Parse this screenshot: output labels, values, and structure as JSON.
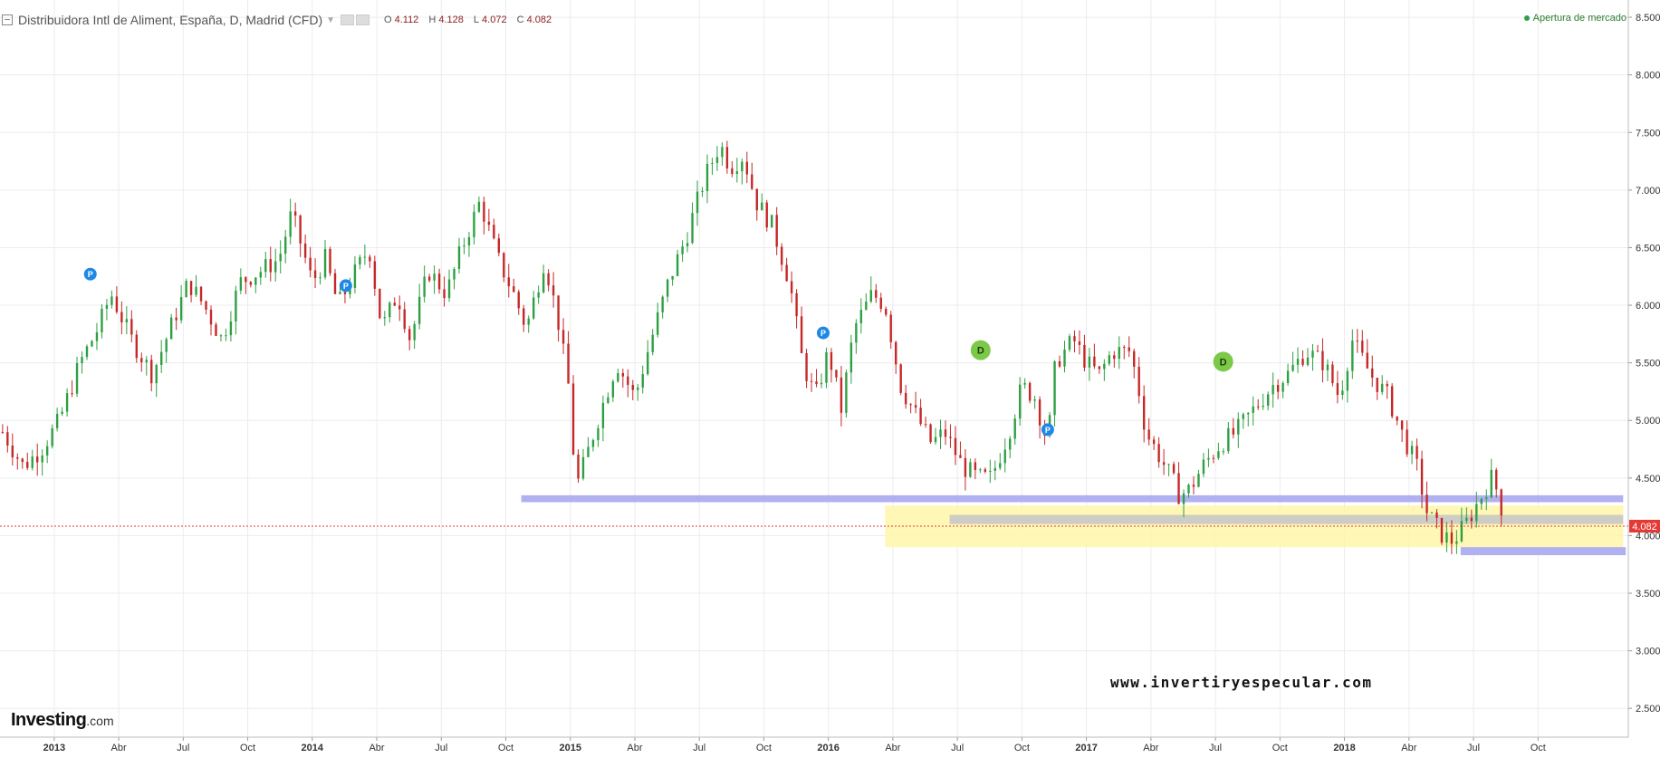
{
  "header": {
    "title": "Distribuidora Intl de Aliment, España, D, Madrid (CFD)",
    "ohlc": [
      {
        "key": "O",
        "value": "4.112"
      },
      {
        "key": "H",
        "value": "4.128"
      },
      {
        "key": "L",
        "value": "4.072"
      },
      {
        "key": "C",
        "value": "4.082"
      }
    ]
  },
  "market_status": "Apertura de mercado",
  "logo": {
    "main": "Investing",
    "suffix": ".com"
  },
  "watermark": "www.invertiryespecular.com",
  "colors": {
    "up": "#2ea043",
    "down": "#c62828",
    "zone_blue": "#a8a8f0",
    "zone_yellow": "#fff6a8",
    "zone_gray": "#c8c8c8",
    "last_price": "#e53935",
    "grid": "#ececec",
    "event_blue": "#1e88e5",
    "event_green": "#7cc94a"
  },
  "chart_data": {
    "type": "candlestick",
    "x_tick_labels": [
      "2013",
      "Abr",
      "Jul",
      "Oct",
      "2014",
      "Abr",
      "Jul",
      "Oct",
      "2015",
      "Abr",
      "Jul",
      "Oct",
      "2016",
      "Abr",
      "Jul",
      "Oct",
      "2017",
      "Abr",
      "Jul",
      "Oct",
      "2018",
      "Abr",
      "Jul",
      "Oct"
    ],
    "y_ticks": [
      "2.500",
      "3.000",
      "3.500",
      "4.000",
      "4.500",
      "5.000",
      "5.500",
      "6.000",
      "6.500",
      "7.000",
      "7.500",
      "8.000",
      "8.500"
    ],
    "ylim": [
      2.25,
      8.65
    ],
    "xlim": [
      2012.79,
      2019.1
    ],
    "last_price": {
      "label": "4.082",
      "value": 4.082
    },
    "price_path": [
      [
        2012.8,
        4.9
      ],
      [
        2012.88,
        4.6
      ],
      [
        2012.95,
        4.75
      ],
      [
        2013.02,
        5.0
      ],
      [
        2013.1,
        5.5
      ],
      [
        2013.17,
        5.8
      ],
      [
        2013.22,
        6.1
      ],
      [
        2013.3,
        5.7
      ],
      [
        2013.38,
        5.4
      ],
      [
        2013.45,
        5.8
      ],
      [
        2013.52,
        6.2
      ],
      [
        2013.58,
        6.0
      ],
      [
        2013.65,
        5.7
      ],
      [
        2013.72,
        6.2
      ],
      [
        2013.8,
        6.3
      ],
      [
        2013.87,
        6.4
      ],
      [
        2013.92,
        6.8
      ],
      [
        2014.0,
        6.2
      ],
      [
        2014.05,
        6.4
      ],
      [
        2014.1,
        6.0
      ],
      [
        2014.17,
        6.3
      ],
      [
        2014.22,
        6.5
      ],
      [
        2014.27,
        5.8
      ],
      [
        2014.33,
        6.1
      ],
      [
        2014.38,
        5.7
      ],
      [
        2014.45,
        6.3
      ],
      [
        2014.52,
        6.1
      ],
      [
        2014.58,
        6.5
      ],
      [
        2014.65,
        6.9
      ],
      [
        2014.72,
        6.4
      ],
      [
        2014.78,
        6.1
      ],
      [
        2014.83,
        5.8
      ],
      [
        2014.9,
        6.4
      ],
      [
        2014.95,
        5.9
      ],
      [
        2015.0,
        5.2
      ],
      [
        2015.02,
        4.4
      ],
      [
        2015.05,
        4.6
      ],
      [
        2015.12,
        5.1
      ],
      [
        2015.18,
        5.5
      ],
      [
        2015.25,
        5.2
      ],
      [
        2015.3,
        5.6
      ],
      [
        2015.38,
        6.2
      ],
      [
        2015.45,
        6.6
      ],
      [
        2015.52,
        7.1
      ],
      [
        2015.58,
        7.4
      ],
      [
        2015.62,
        7.2
      ],
      [
        2015.67,
        7.3
      ],
      [
        2015.72,
        6.9
      ],
      [
        2015.78,
        6.7
      ],
      [
        2015.85,
        6.2
      ],
      [
        2015.9,
        5.5
      ],
      [
        2015.95,
        5.2
      ],
      [
        2016.0,
        5.6
      ],
      [
        2016.05,
        5.1
      ],
      [
        2016.1,
        5.8
      ],
      [
        2016.17,
        6.1
      ],
      [
        2016.22,
        6.0
      ],
      [
        2016.28,
        5.3
      ],
      [
        2016.35,
        5.0
      ],
      [
        2016.4,
        4.8
      ],
      [
        2016.45,
        4.9
      ],
      [
        2016.52,
        4.6
      ],
      [
        2016.58,
        4.5
      ],
      [
        2016.63,
        4.5
      ],
      [
        2016.7,
        4.9
      ],
      [
        2016.75,
        5.3
      ],
      [
        2016.8,
        5.2
      ],
      [
        2016.85,
        4.8
      ],
      [
        2016.88,
        5.5
      ],
      [
        2016.95,
        5.7
      ],
      [
        2017.0,
        5.5
      ],
      [
        2017.05,
        5.4
      ],
      [
        2017.1,
        5.6
      ],
      [
        2017.17,
        5.6
      ],
      [
        2017.2,
        5.3
      ],
      [
        2017.23,
        4.9
      ],
      [
        2017.28,
        4.7
      ],
      [
        2017.33,
        4.5
      ],
      [
        2017.36,
        4.35
      ],
      [
        2017.4,
        4.4
      ],
      [
        2017.45,
        4.6
      ],
      [
        2017.52,
        4.8
      ],
      [
        2017.58,
        4.9
      ],
      [
        2017.65,
        5.1
      ],
      [
        2017.72,
        5.3
      ],
      [
        2017.78,
        5.4
      ],
      [
        2017.85,
        5.6
      ],
      [
        2017.92,
        5.5
      ],
      [
        2017.98,
        5.2
      ],
      [
        2018.03,
        5.7
      ],
      [
        2018.1,
        5.4
      ],
      [
        2018.17,
        5.2
      ],
      [
        2018.22,
        4.9
      ],
      [
        2018.28,
        4.6
      ],
      [
        2018.32,
        4.2
      ],
      [
        2018.38,
        4.0
      ],
      [
        2018.42,
        3.95
      ],
      [
        2018.47,
        4.1
      ],
      [
        2018.52,
        4.3
      ],
      [
        2018.57,
        4.5
      ],
      [
        2018.6,
        4.35
      ],
      [
        2018.62,
        4.08
      ]
    ],
    "zones": [
      {
        "color": "zone_yellow",
        "x": [
          2016.22,
          2019.08
        ],
        "y": [
          3.9,
          4.26
        ]
      },
      {
        "color": "zone_blue",
        "x": [
          2014.81,
          2019.08
        ],
        "y": [
          4.29,
          4.35
        ]
      },
      {
        "color": "zone_gray",
        "x": [
          2016.47,
          2019.08
        ],
        "y": [
          4.1,
          4.18
        ]
      },
      {
        "color": "zone_blue",
        "x": [
          2018.45,
          2019.09
        ],
        "y": [
          3.83,
          3.9
        ]
      }
    ],
    "events": [
      {
        "label": "P",
        "x": 2013.14,
        "y": 6.27,
        "color": "event_blue"
      },
      {
        "label": "P",
        "x": 2014.13,
        "y": 6.17,
        "color": "event_blue"
      },
      {
        "label": "P",
        "x": 2015.98,
        "y": 5.76,
        "color": "event_blue"
      },
      {
        "label": "P",
        "x": 2016.85,
        "y": 4.92,
        "color": "event_blue"
      },
      {
        "label": "D",
        "x": 2016.59,
        "y": 5.61,
        "color": "event_green"
      },
      {
        "label": "D",
        "x": 2017.53,
        "y": 5.51,
        "color": "event_green"
      }
    ]
  }
}
